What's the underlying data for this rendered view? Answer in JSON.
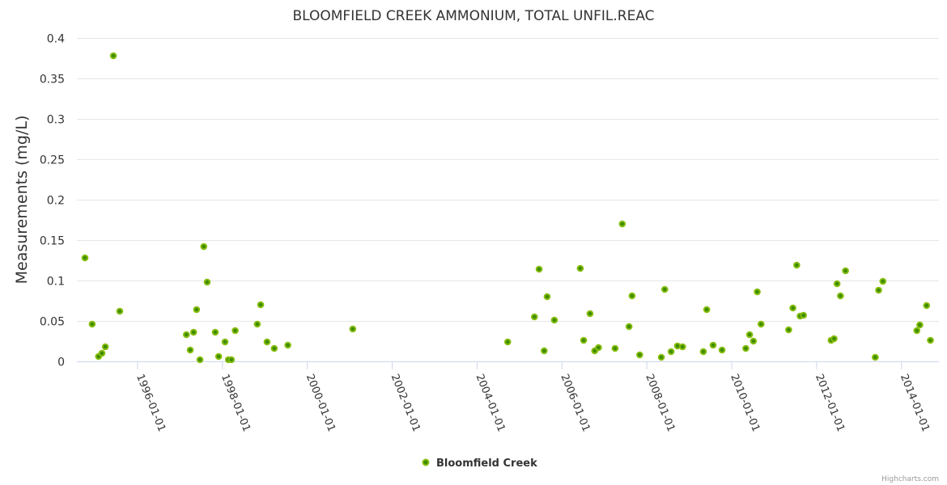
{
  "chart_data": {
    "type": "scatter",
    "title": "BLOOMFIELD CREEK AMMONIUM, TOTAL UNFIL.REAC",
    "xlabel": "",
    "ylabel": "Measurements (mg/L)",
    "x_units": "decimal year",
    "xlim": [
      1994.58,
      2014.89
    ],
    "ylim": [
      0,
      0.4
    ],
    "grid": true,
    "legend_position": "bottom-center",
    "y_ticks": [
      {
        "v": 0,
        "label": "0"
      },
      {
        "v": 0.05,
        "label": "0.05"
      },
      {
        "v": 0.1,
        "label": "0.1"
      },
      {
        "v": 0.15,
        "label": "0.15"
      },
      {
        "v": 0.2,
        "label": "0.2"
      },
      {
        "v": 0.25,
        "label": "0.25"
      },
      {
        "v": 0.3,
        "label": "0.3"
      },
      {
        "v": 0.35,
        "label": "0.35"
      },
      {
        "v": 0.4,
        "label": "0.4"
      }
    ],
    "x_ticks": [
      {
        "v": 1996,
        "label": "1996-01-01"
      },
      {
        "v": 1998,
        "label": "1998-01-01"
      },
      {
        "v": 2000,
        "label": "2000-01-01"
      },
      {
        "v": 2002,
        "label": "2002-01-01"
      },
      {
        "v": 2004,
        "label": "2004-01-01"
      },
      {
        "v": 2006,
        "label": "2006-01-01"
      },
      {
        "v": 2008,
        "label": "2008-01-01"
      },
      {
        "v": 2010,
        "label": "2010-01-01"
      },
      {
        "v": 2012,
        "label": "2012-01-01"
      },
      {
        "v": 2014,
        "label": "2014-01-01"
      }
    ],
    "series": [
      {
        "name": "Bloomfield Creek",
        "color": "#7cb500",
        "points": [
          [
            1994.77,
            0.128
          ],
          [
            1994.94,
            0.046
          ],
          [
            1995.09,
            0.006
          ],
          [
            1995.17,
            0.01
          ],
          [
            1995.25,
            0.018
          ],
          [
            1995.44,
            0.378
          ],
          [
            1995.59,
            0.062
          ],
          [
            1997.16,
            0.033
          ],
          [
            1997.25,
            0.014
          ],
          [
            1997.33,
            0.036
          ],
          [
            1997.4,
            0.064
          ],
          [
            1997.48,
            0.002
          ],
          [
            1997.57,
            0.142
          ],
          [
            1997.65,
            0.098
          ],
          [
            1997.84,
            0.036
          ],
          [
            1997.92,
            0.006
          ],
          [
            1998.07,
            0.024
          ],
          [
            1998.15,
            0.002
          ],
          [
            1998.22,
            0.002
          ],
          [
            1998.31,
            0.038
          ],
          [
            1998.83,
            0.046
          ],
          [
            1998.91,
            0.07
          ],
          [
            1999.06,
            0.024
          ],
          [
            1999.23,
            0.016
          ],
          [
            1999.55,
            0.02
          ],
          [
            2001.08,
            0.04
          ],
          [
            2004.73,
            0.024
          ],
          [
            2005.36,
            0.055
          ],
          [
            2005.47,
            0.114
          ],
          [
            2005.59,
            0.013
          ],
          [
            2005.66,
            0.08
          ],
          [
            2005.83,
            0.051
          ],
          [
            2006.44,
            0.115
          ],
          [
            2006.52,
            0.026
          ],
          [
            2006.67,
            0.059
          ],
          [
            2006.78,
            0.013
          ],
          [
            2006.87,
            0.017
          ],
          [
            2007.26,
            0.016
          ],
          [
            2007.43,
            0.17
          ],
          [
            2007.59,
            0.043
          ],
          [
            2007.66,
            0.081
          ],
          [
            2007.84,
            0.008
          ],
          [
            2008.35,
            0.005
          ],
          [
            2008.43,
            0.089
          ],
          [
            2008.58,
            0.012
          ],
          [
            2008.73,
            0.019
          ],
          [
            2008.85,
            0.018
          ],
          [
            2009.34,
            0.012
          ],
          [
            2009.42,
            0.064
          ],
          [
            2009.57,
            0.02
          ],
          [
            2009.78,
            0.014
          ],
          [
            2010.34,
            0.016
          ],
          [
            2010.43,
            0.033
          ],
          [
            2010.52,
            0.025
          ],
          [
            2010.61,
            0.086
          ],
          [
            2010.7,
            0.046
          ],
          [
            2011.35,
            0.039
          ],
          [
            2011.45,
            0.066
          ],
          [
            2011.54,
            0.119
          ],
          [
            2011.62,
            0.056
          ],
          [
            2011.7,
            0.057
          ],
          [
            2012.35,
            0.026
          ],
          [
            2012.42,
            0.028
          ],
          [
            2012.49,
            0.096
          ],
          [
            2012.57,
            0.081
          ],
          [
            2012.69,
            0.112
          ],
          [
            2013.39,
            0.005
          ],
          [
            2013.47,
            0.088
          ],
          [
            2013.57,
            0.099
          ],
          [
            2014.37,
            0.038
          ],
          [
            2014.44,
            0.045
          ],
          [
            2014.6,
            0.069
          ],
          [
            2014.69,
            0.026
          ]
        ]
      }
    ]
  },
  "credit": "Highcharts.com",
  "colors": {
    "marker_fill": "#3d8c00",
    "marker_line": "#86bd0c",
    "grid": "#e6e6e6",
    "axis": "#ccd6eb"
  }
}
